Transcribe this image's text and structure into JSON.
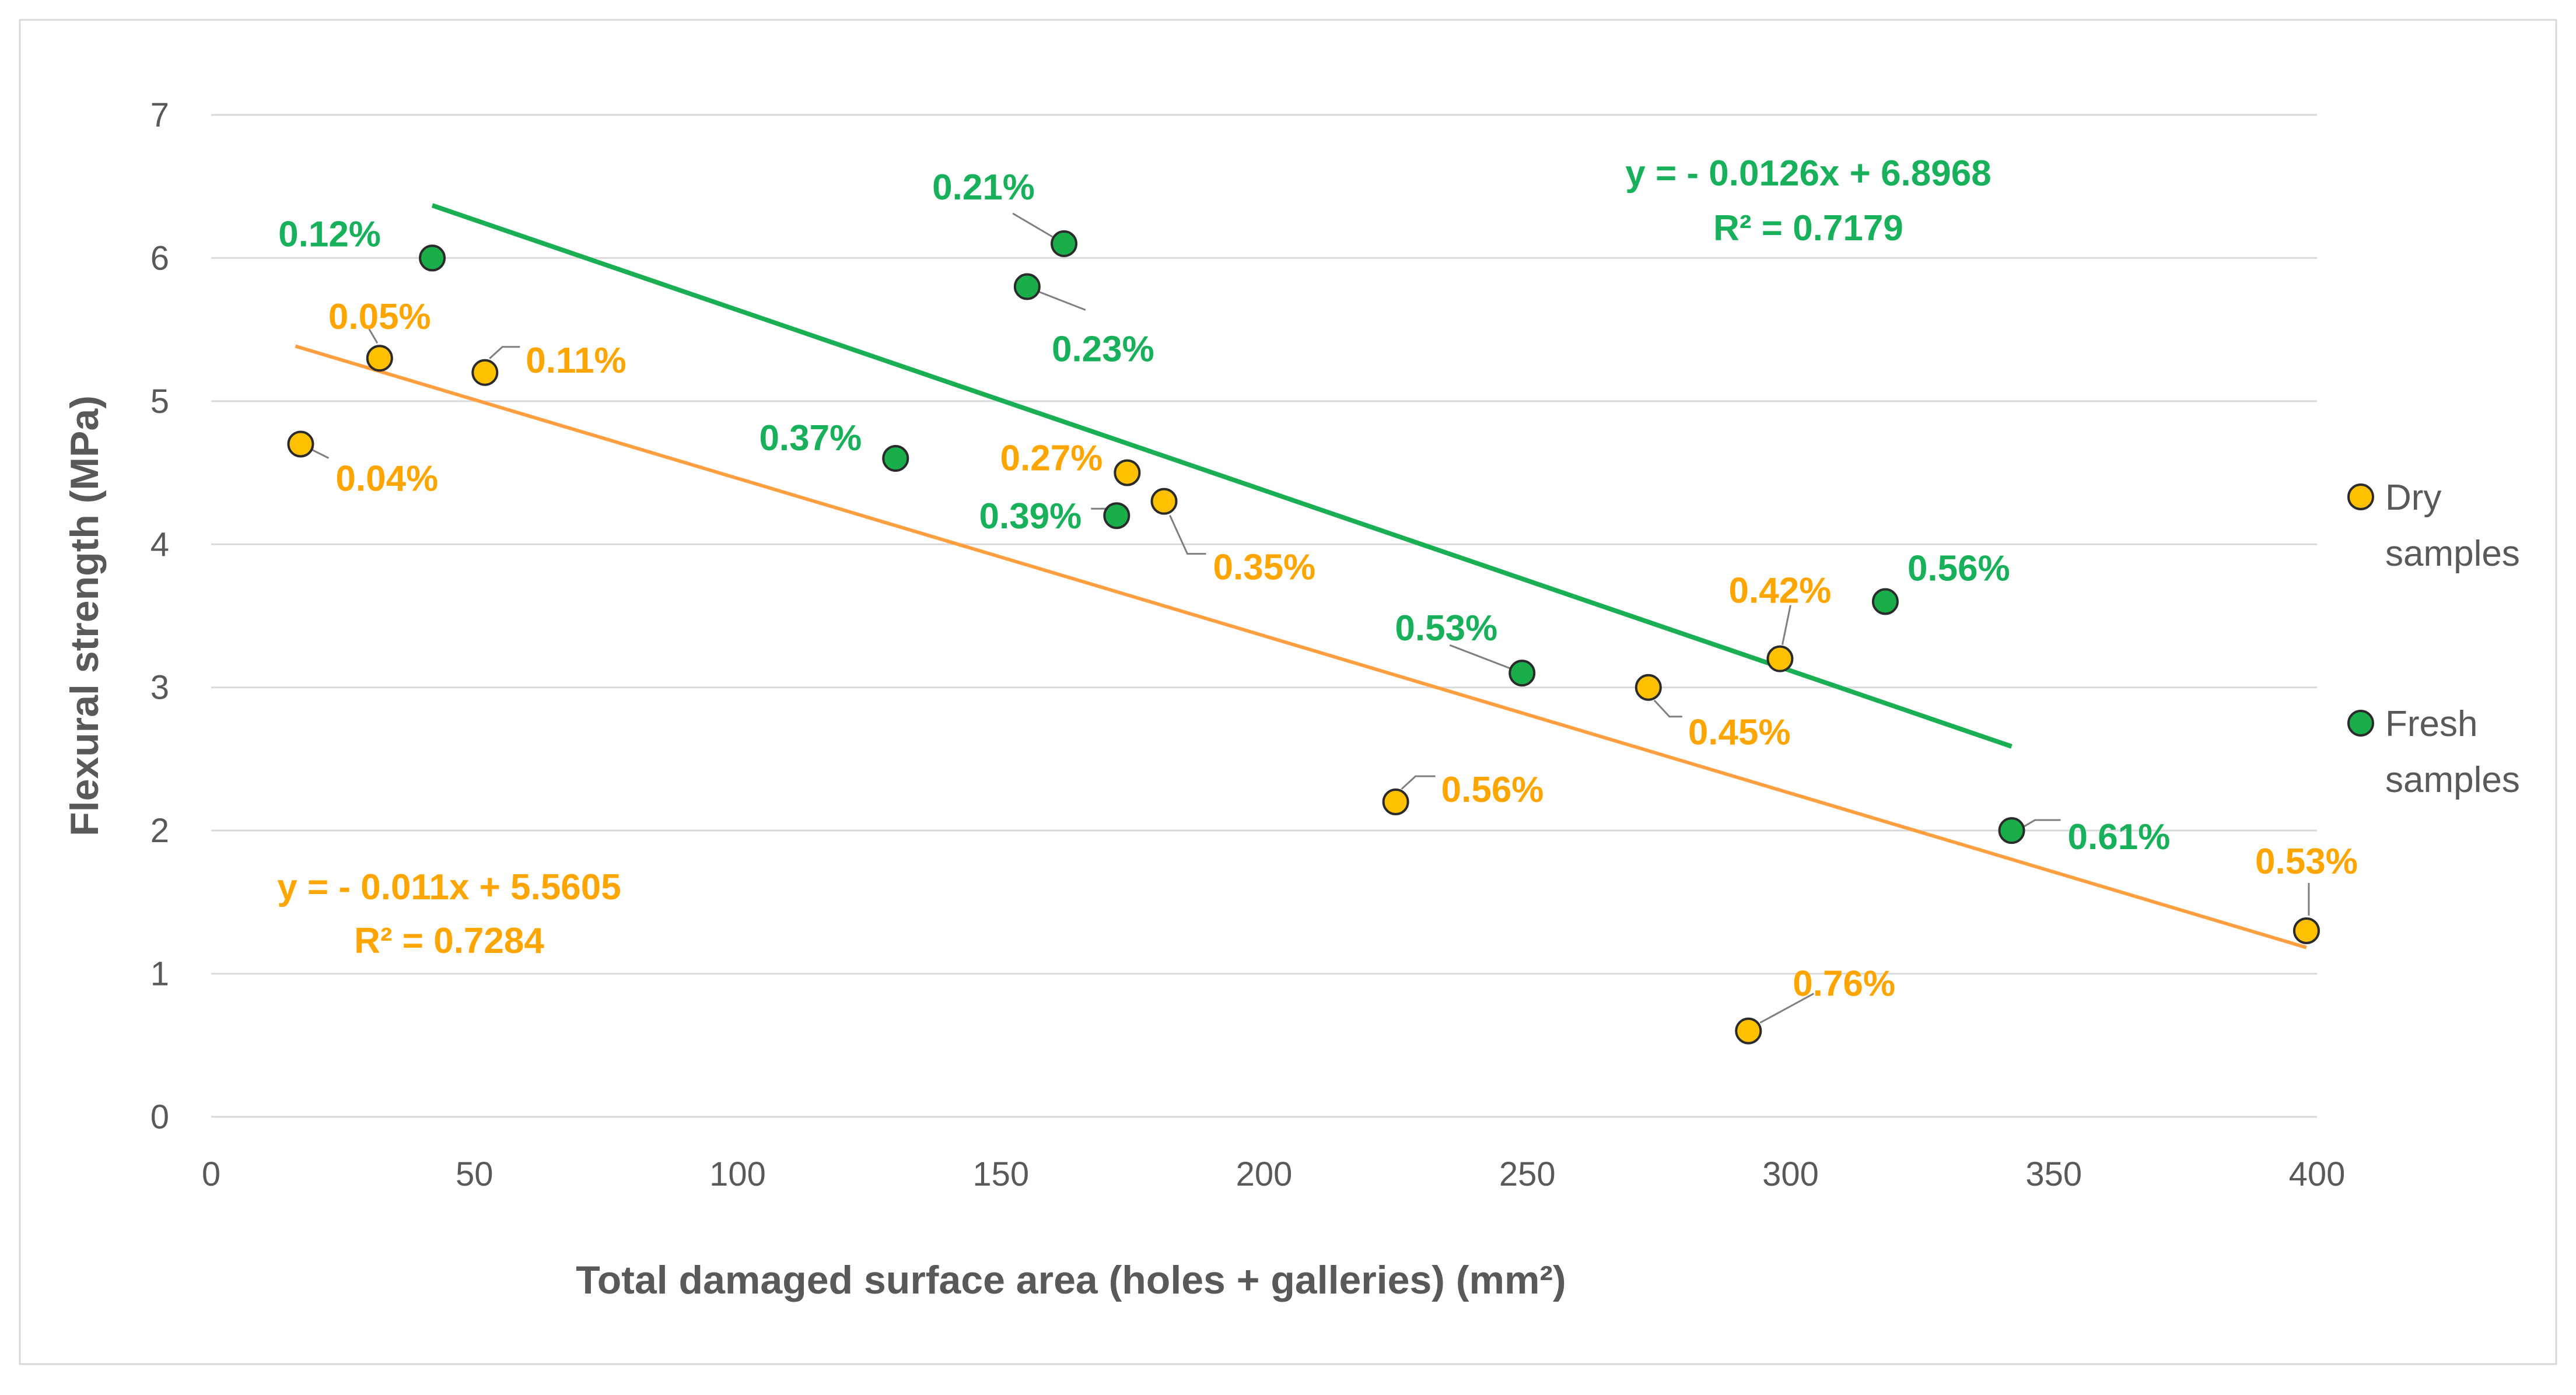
{
  "chart_data": {
    "type": "scatter",
    "title": "",
    "xlabel": "Total damaged surface area (holes + galleries) (mm²)",
    "ylabel": "Flexural strength (MPa)",
    "xlim": [
      0,
      400
    ],
    "ylim": [
      0,
      7
    ],
    "x_ticks": [
      "0",
      "50",
      "100",
      "150",
      "200",
      "250",
      "300",
      "350",
      "400"
    ],
    "y_ticks": [
      "0",
      "1",
      "2",
      "3",
      "4",
      "5",
      "6",
      "7"
    ],
    "grid": "horizontal",
    "legend_position": "right",
    "series": [
      {
        "name": "Dry samples",
        "legend_lines": [
          "Dry",
          "samples"
        ],
        "marker_color": "#FFC000",
        "label_color": "#FFA500",
        "trend_color": "#FF9F40",
        "points": [
          {
            "x": 17,
            "y": 4.7,
            "label": "0.04%"
          },
          {
            "x": 32,
            "y": 5.3,
            "label": "0.05%"
          },
          {
            "x": 52,
            "y": 5.2,
            "label": "0.11%"
          },
          {
            "x": 174,
            "y": 4.5,
            "label": "0.27%"
          },
          {
            "x": 181,
            "y": 4.3,
            "label": "0.35%"
          },
          {
            "x": 298,
            "y": 3.2,
            "label": "0.42%"
          },
          {
            "x": 273,
            "y": 3.0,
            "label": "0.45%"
          },
          {
            "x": 225,
            "y": 2.2,
            "label": "0.56%"
          },
          {
            "x": 398,
            "y": 1.3,
            "label": "0.53%"
          },
          {
            "x": 292,
            "y": 0.6,
            "label": "0.76%"
          }
        ],
        "trendline": {
          "slope": -0.011,
          "intercept": 5.5605,
          "x_range": [
            16,
            398
          ],
          "equation": "y = - 0.011x + 5.5605",
          "r2": "R² = 0.7284"
        }
      },
      {
        "name": "Fresh samples",
        "legend_lines": [
          "Fresh",
          "samples"
        ],
        "marker_color": "#1AAE4A",
        "label_color": "#18B05B",
        "trend_color": "#1AAE55",
        "points": [
          {
            "x": 42,
            "y": 6.0,
            "label": "0.12%"
          },
          {
            "x": 162,
            "y": 6.1,
            "label": "0.21%"
          },
          {
            "x": 155,
            "y": 5.8,
            "label": "0.23%"
          },
          {
            "x": 130,
            "y": 4.6,
            "label": "0.37%"
          },
          {
            "x": 172,
            "y": 4.2,
            "label": "0.39%"
          },
          {
            "x": 249,
            "y": 3.1,
            "label": "0.53%"
          },
          {
            "x": 318,
            "y": 3.6,
            "label": "0.56%"
          },
          {
            "x": 342,
            "y": 2.0,
            "label": "0.61%"
          }
        ],
        "trendline": {
          "slope": -0.0126,
          "intercept": 6.8968,
          "x_range": [
            42,
            342
          ],
          "equation": "y = - 0.0126x + 6.8968",
          "r2": "R² = 0.7179"
        }
      }
    ]
  }
}
